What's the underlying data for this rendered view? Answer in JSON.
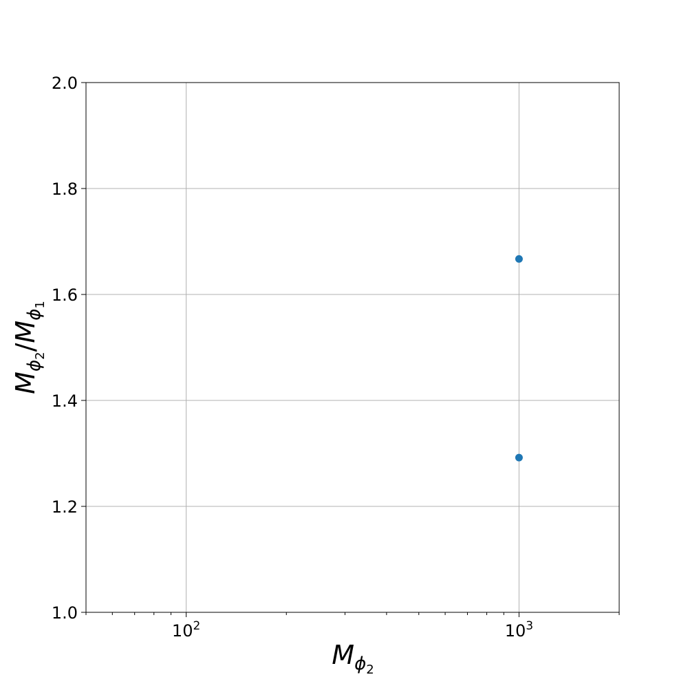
{
  "chart_data": {
    "type": "scatter",
    "title": "",
    "xlabel": "M_{ϕ2}",
    "ylabel": "M_{ϕ2}/M_{ϕ1}",
    "xscale": "log",
    "xlim": [
      50,
      2000
    ],
    "ylim": [
      1.0,
      2.0
    ],
    "grid": true,
    "x_ticks": [
      100,
      1000
    ],
    "x_tick_labels": [
      "10",
      "10"
    ],
    "x_tick_exponents": [
      "2",
      "3"
    ],
    "y_ticks": [
      1.0,
      1.2,
      1.4,
      1.6,
      1.8,
      2.0
    ],
    "y_tick_labels": [
      "1.0",
      "1.2",
      "1.4",
      "1.6",
      "1.8",
      "2.0"
    ],
    "series": [
      {
        "color": "#1f77b4",
        "x": [
          1000,
          1000
        ],
        "y": [
          1.667,
          1.292
        ]
      }
    ],
    "axis_symbols": {
      "M": "M",
      "phi": "ϕ",
      "sub2": "2",
      "sub1": "1",
      "slash": "/"
    }
  }
}
